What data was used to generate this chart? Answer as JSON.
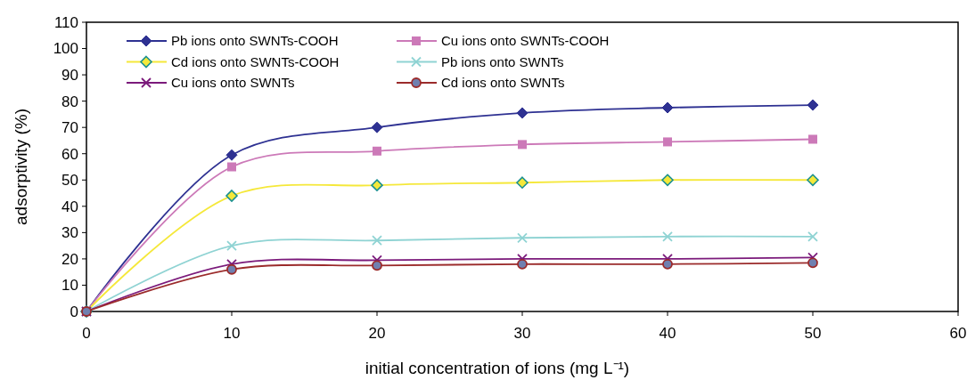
{
  "chart_data": {
    "type": "line",
    "xlabel": "initial concentration of ions (mg L⁻¹)",
    "ylabel": "adsorptivity (%)",
    "x": [
      0,
      10,
      20,
      30,
      40,
      50
    ],
    "xlim": [
      0,
      60
    ],
    "xticks": [
      0,
      10,
      20,
      30,
      40,
      50,
      60
    ],
    "ylim": [
      0,
      110
    ],
    "yticks": [
      0,
      10,
      20,
      30,
      40,
      50,
      60,
      70,
      80,
      90,
      100,
      110
    ],
    "grid": false,
    "legend": "top left",
    "series": [
      {
        "name": "Pb ions onto SWNTs-COOH",
        "color": "#2e3192",
        "marker": "diamond",
        "values": [
          0,
          59.5,
          70,
          75.5,
          77.5,
          78.5
        ]
      },
      {
        "name": "Cu  ions onto SWNTs-COOH",
        "color": "#cc79b8",
        "marker": "square",
        "values": [
          0,
          55,
          61,
          63.5,
          64.5,
          65.5
        ]
      },
      {
        "name": "Cd  ions onto SWNTs-COOH",
        "color": "#f5e83a",
        "marker": "diamond",
        "values": [
          0,
          44,
          48,
          49,
          50,
          50
        ]
      },
      {
        "name": "Pb  ions onto SWNTs",
        "color": "#8fd3d3",
        "marker": "cross",
        "values": [
          0,
          25,
          27,
          28,
          28.5,
          28.5
        ]
      },
      {
        "name": "Cu  ions onto SWNTs",
        "color": "#7b1a7b",
        "marker": "cross",
        "values": [
          0,
          18,
          19.5,
          20,
          20,
          20.5
        ]
      },
      {
        "name": "Cd  ions onto SWNTs",
        "color": "#9b2b2b",
        "marker": "circle",
        "values": [
          0,
          16,
          17.5,
          18,
          18,
          18.5
        ]
      }
    ]
  }
}
